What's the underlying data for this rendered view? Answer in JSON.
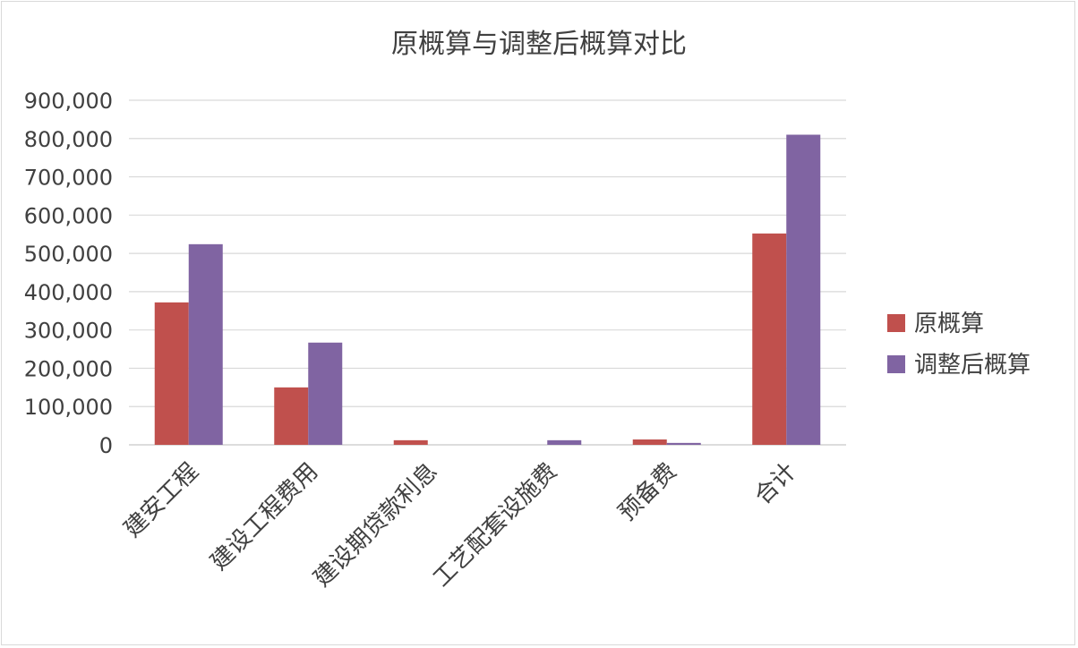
{
  "chart_data": {
    "type": "bar",
    "title": "原概算与调整后概算对比",
    "categories": [
      "建安工程",
      "建设工程费用",
      "建设期贷款利息",
      "工艺配套设施费",
      "预备费",
      "合计"
    ],
    "series": [
      {
        "name": "原概算",
        "color": "#c0504d",
        "values": [
          372000,
          150000,
          12000,
          0,
          14000,
          552000
        ]
      },
      {
        "name": "调整后概算",
        "color": "#8064a2",
        "values": [
          524000,
          267000,
          0,
          12000,
          5000,
          810000
        ]
      }
    ],
    "ylim": [
      0,
      900000
    ],
    "yticks": [
      0,
      100000,
      200000,
      300000,
      400000,
      500000,
      600000,
      700000,
      800000,
      900000
    ],
    "ytick_labels": [
      "0",
      "100,000",
      "200,000",
      "300,000",
      "400,000",
      "500,000",
      "600,000",
      "700,000",
      "800,000",
      "900,000"
    ],
    "grid": true,
    "legend_position": "right",
    "xlabel": "",
    "ylabel": ""
  }
}
